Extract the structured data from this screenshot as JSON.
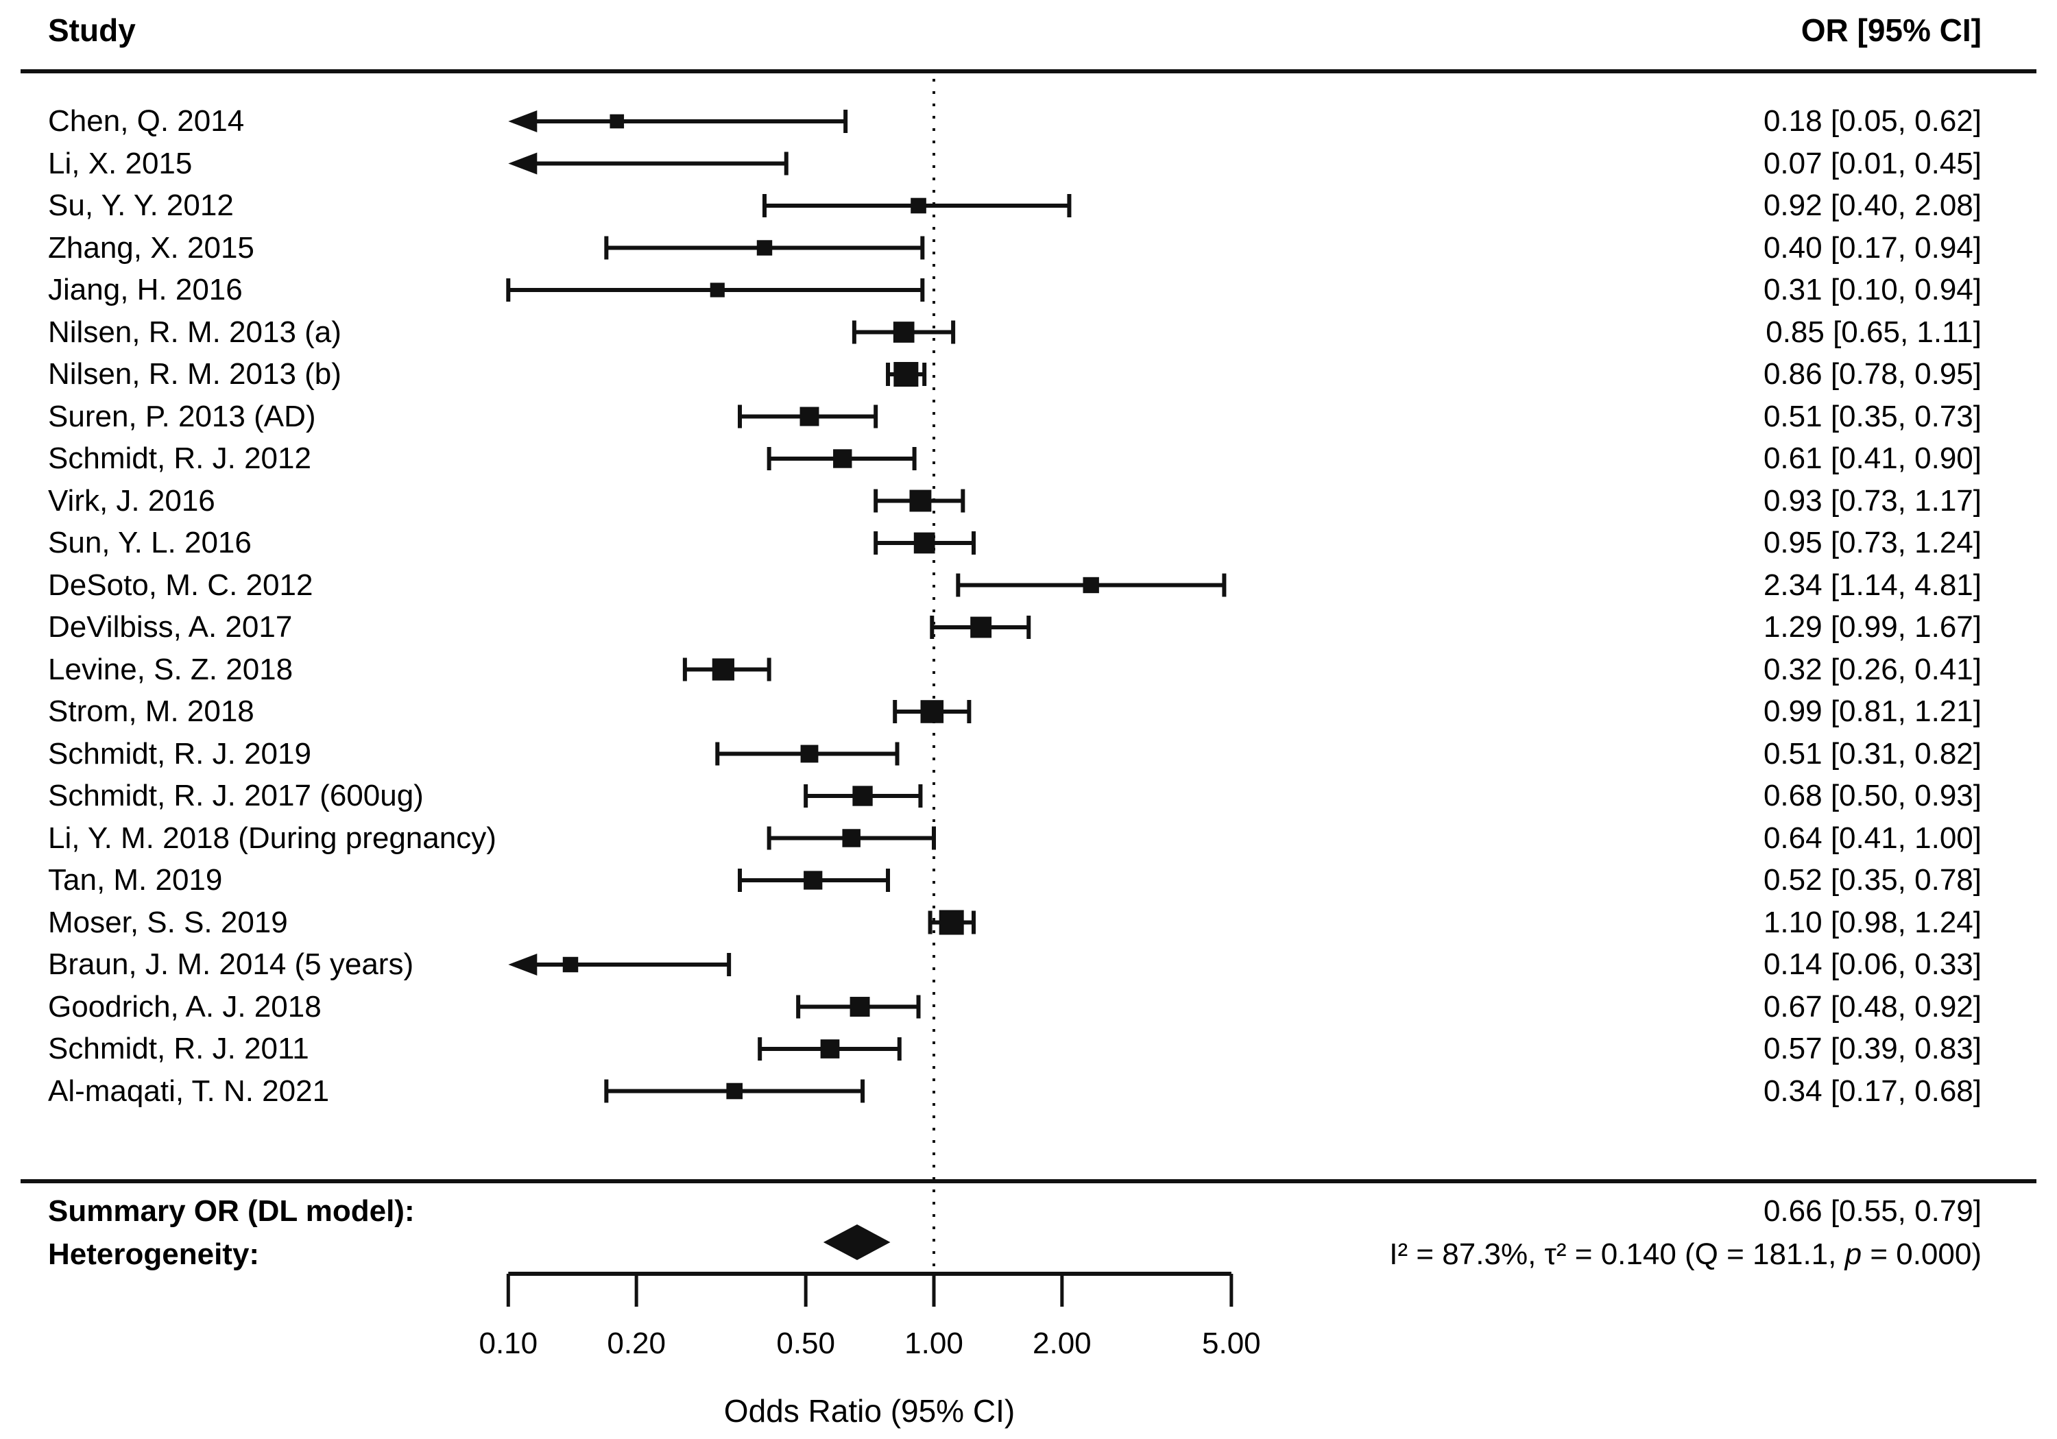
{
  "header": {
    "study_col": "Study",
    "or_col": "OR [95% CI]"
  },
  "summary_row": {
    "label": "Summary OR (DL model):",
    "value_text": "0.66 [0.55, 0.79]"
  },
  "heterogeneity_row": {
    "label": "Heterogeneity:",
    "stats_pre": "I² = 87.3%, τ² = 0.140 (Q = 181.1, ",
    "stats_p": "p",
    "stats_post": " = 0.000)"
  },
  "chart_data": {
    "type": "forest",
    "x_scale": "log",
    "x_range": [
      0.1,
      5.0
    ],
    "x_ticks": [
      {
        "value": 0.1,
        "label": "0.10"
      },
      {
        "value": 0.2,
        "label": "0.20"
      },
      {
        "value": 0.5,
        "label": "0.50"
      },
      {
        "value": 1.0,
        "label": "1.00"
      },
      {
        "value": 2.0,
        "label": "2.00"
      },
      {
        "value": 5.0,
        "label": "5.00"
      }
    ],
    "reference_value": 1.0,
    "xlabel": "Odds Ratio (95% CI)",
    "studies": [
      {
        "name": "Chen, Q. 2014",
        "or": 0.18,
        "low": 0.05,
        "high": 0.62,
        "text": "0.18 [0.05, 0.62]"
      },
      {
        "name": "Li, X. 2015",
        "or": 0.07,
        "low": 0.01,
        "high": 0.45,
        "text": "0.07 [0.01, 0.45]"
      },
      {
        "name": "Su, Y. Y. 2012",
        "or": 0.92,
        "low": 0.4,
        "high": 2.08,
        "text": "0.92 [0.40, 2.08]"
      },
      {
        "name": "Zhang, X. 2015",
        "or": 0.4,
        "low": 0.17,
        "high": 0.94,
        "text": "0.40 [0.17, 0.94]"
      },
      {
        "name": "Jiang, H. 2016",
        "or": 0.31,
        "low": 0.1,
        "high": 0.94,
        "text": "0.31 [0.10, 0.94]"
      },
      {
        "name": "Nilsen, R. M. 2013 (a)",
        "or": 0.85,
        "low": 0.65,
        "high": 1.11,
        "text": "0.85 [0.65, 1.11]"
      },
      {
        "name": "Nilsen, R. M. 2013 (b)",
        "or": 0.86,
        "low": 0.78,
        "high": 0.95,
        "text": "0.86 [0.78, 0.95]"
      },
      {
        "name": "Suren, P. 2013 (AD)",
        "or": 0.51,
        "low": 0.35,
        "high": 0.73,
        "text": "0.51 [0.35, 0.73]"
      },
      {
        "name": "Schmidt, R. J. 2012",
        "or": 0.61,
        "low": 0.41,
        "high": 0.9,
        "text": "0.61 [0.41, 0.90]"
      },
      {
        "name": "Virk, J. 2016",
        "or": 0.93,
        "low": 0.73,
        "high": 1.17,
        "text": "0.93 [0.73, 1.17]"
      },
      {
        "name": "Sun, Y. L. 2016",
        "or": 0.95,
        "low": 0.73,
        "high": 1.24,
        "text": "0.95 [0.73, 1.24]"
      },
      {
        "name": "DeSoto, M. C. 2012",
        "or": 2.34,
        "low": 1.14,
        "high": 4.81,
        "text": "2.34 [1.14, 4.81]"
      },
      {
        "name": "DeVilbiss, A. 2017",
        "or": 1.29,
        "low": 0.99,
        "high": 1.67,
        "text": "1.29 [0.99, 1.67]"
      },
      {
        "name": "Levine, S. Z. 2018",
        "or": 0.32,
        "low": 0.26,
        "high": 0.41,
        "text": "0.32 [0.26, 0.41]"
      },
      {
        "name": "Strom, M. 2018",
        "or": 0.99,
        "low": 0.81,
        "high": 1.21,
        "text": "0.99 [0.81, 1.21]"
      },
      {
        "name": "Schmidt, R. J. 2019",
        "or": 0.51,
        "low": 0.31,
        "high": 0.82,
        "text": "0.51 [0.31, 0.82]"
      },
      {
        "name": "Schmidt, R. J. 2017 (600ug)",
        "or": 0.68,
        "low": 0.5,
        "high": 0.93,
        "text": "0.68 [0.50, 0.93]"
      },
      {
        "name": "Li, Y. M. 2018 (During pregnancy)",
        "or": 0.64,
        "low": 0.41,
        "high": 1.0,
        "text": "0.64 [0.41, 1.00]"
      },
      {
        "name": "Tan, M. 2019",
        "or": 0.52,
        "low": 0.35,
        "high": 0.78,
        "text": "0.52 [0.35, 0.78]"
      },
      {
        "name": "Moser, S. S. 2019",
        "or": 1.1,
        "low": 0.98,
        "high": 1.24,
        "text": "1.10 [0.98, 1.24]"
      },
      {
        "name": "Braun, J. M. 2014 (5 years)",
        "or": 0.14,
        "low": 0.06,
        "high": 0.33,
        "text": "0.14 [0.06, 0.33]"
      },
      {
        "name": "Goodrich, A. J. 2018",
        "or": 0.67,
        "low": 0.48,
        "high": 0.92,
        "text": "0.67 [0.48, 0.92]"
      },
      {
        "name": "Schmidt, R. J. 2011",
        "or": 0.57,
        "low": 0.39,
        "high": 0.83,
        "text": "0.57 [0.39, 0.83]"
      },
      {
        "name": "Al-maqati, T. N. 2021",
        "or": 0.34,
        "low": 0.17,
        "high": 0.68,
        "text": "0.34 [0.17, 0.68]"
      }
    ],
    "summary": {
      "label": "Summary OR (DL model):",
      "or": 0.66,
      "low": 0.55,
      "high": 0.79,
      "text": "0.66 [0.55, 0.79]"
    },
    "heterogeneity": {
      "I2_pct": 87.3,
      "tau2": 0.14,
      "Q": 181.1,
      "p": "0.000",
      "text": "I² = 87.3%, τ² = 0.140 (Q = 181.1, p = 0.000)"
    }
  }
}
